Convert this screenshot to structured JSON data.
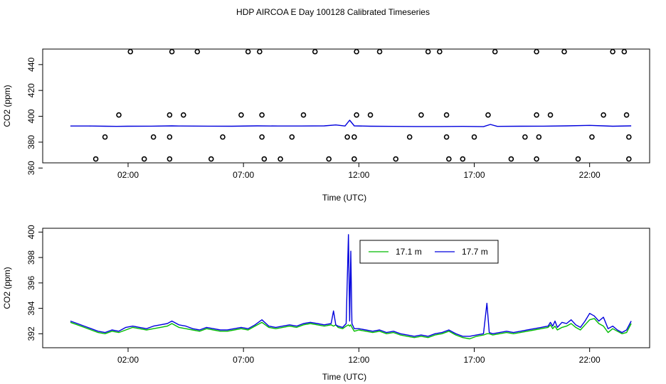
{
  "title": "HDP AIRCOA E  Day 100128  Calibrated Timeseries",
  "colors": {
    "series_a": "#00bb00",
    "series_b": "#0000dd",
    "points": "#000000"
  },
  "chart_data": [
    {
      "type": "scatter",
      "xlabel": "Time (UTC)",
      "ylabel": "CO2 (ppm)",
      "xlim": [
        -1.7,
        24.6
      ],
      "ylim": [
        364,
        452
      ],
      "x_tick_values": [
        2,
        7,
        12,
        17,
        22
      ],
      "x_tick_labels": [
        "02:00",
        "07:00",
        "12:00",
        "17:00",
        "22:00"
      ],
      "y_tick_values": [
        360,
        380,
        400,
        420,
        440
      ],
      "y_tick_labels": [
        "360",
        "380",
        "400",
        "420",
        "440"
      ],
      "grid": false,
      "points": [
        {
          "x": 2.1,
          "y": 450
        },
        {
          "x": 3.9,
          "y": 450
        },
        {
          "x": 5.0,
          "y": 450
        },
        {
          "x": 7.2,
          "y": 450
        },
        {
          "x": 7.7,
          "y": 450
        },
        {
          "x": 10.1,
          "y": 450
        },
        {
          "x": 11.9,
          "y": 450
        },
        {
          "x": 12.9,
          "y": 450
        },
        {
          "x": 15.0,
          "y": 450
        },
        {
          "x": 15.5,
          "y": 450
        },
        {
          "x": 17.9,
          "y": 450
        },
        {
          "x": 19.7,
          "y": 450
        },
        {
          "x": 20.9,
          "y": 450
        },
        {
          "x": 23.0,
          "y": 450
        },
        {
          "x": 23.5,
          "y": 450
        },
        {
          "x": 1.6,
          "y": 401
        },
        {
          "x": 3.8,
          "y": 401
        },
        {
          "x": 4.4,
          "y": 401
        },
        {
          "x": 6.9,
          "y": 401
        },
        {
          "x": 7.8,
          "y": 401
        },
        {
          "x": 9.6,
          "y": 401
        },
        {
          "x": 11.9,
          "y": 401
        },
        {
          "x": 12.5,
          "y": 401
        },
        {
          "x": 14.7,
          "y": 401
        },
        {
          "x": 15.8,
          "y": 401
        },
        {
          "x": 17.6,
          "y": 401
        },
        {
          "x": 19.7,
          "y": 401
        },
        {
          "x": 20.3,
          "y": 401
        },
        {
          "x": 22.6,
          "y": 401
        },
        {
          "x": 23.6,
          "y": 401
        },
        {
          "x": 1.0,
          "y": 384
        },
        {
          "x": 3.1,
          "y": 384
        },
        {
          "x": 3.8,
          "y": 384
        },
        {
          "x": 6.1,
          "y": 384
        },
        {
          "x": 7.8,
          "y": 384
        },
        {
          "x": 9.1,
          "y": 384
        },
        {
          "x": 11.5,
          "y": 384
        },
        {
          "x": 11.8,
          "y": 384
        },
        {
          "x": 14.2,
          "y": 384
        },
        {
          "x": 15.8,
          "y": 384
        },
        {
          "x": 17.0,
          "y": 384
        },
        {
          "x": 19.2,
          "y": 384
        },
        {
          "x": 19.8,
          "y": 384
        },
        {
          "x": 22.1,
          "y": 384
        },
        {
          "x": 23.7,
          "y": 384
        },
        {
          "x": 0.6,
          "y": 367
        },
        {
          "x": 2.7,
          "y": 367
        },
        {
          "x": 3.8,
          "y": 367
        },
        {
          "x": 5.6,
          "y": 367
        },
        {
          "x": 7.9,
          "y": 367
        },
        {
          "x": 8.6,
          "y": 367
        },
        {
          "x": 10.7,
          "y": 367
        },
        {
          "x": 11.8,
          "y": 367
        },
        {
          "x": 13.6,
          "y": 367
        },
        {
          "x": 15.9,
          "y": 367
        },
        {
          "x": 16.5,
          "y": 367
        },
        {
          "x": 18.6,
          "y": 367
        },
        {
          "x": 19.7,
          "y": 367
        },
        {
          "x": 21.5,
          "y": 367
        },
        {
          "x": 23.7,
          "y": 367
        }
      ],
      "series": [
        {
          "values_x": [
            -0.5,
            0.3,
            1.0,
            1.5,
            2.0,
            3.0,
            3.9,
            4.2,
            5.5,
            6.5,
            7.6,
            8.5,
            9.5,
            10.5,
            11.0,
            11.4,
            11.6,
            11.8,
            12.5,
            13.5,
            14.5,
            15.5,
            16.5,
            17.4,
            17.7,
            18.0,
            19.0,
            20.0,
            21.0,
            22.0,
            22.6,
            23.0,
            23.8
          ],
          "values": [
            392.5,
            392.5,
            392.3,
            392.2,
            392.3,
            392.4,
            392.6,
            392.5,
            392.4,
            392.3,
            392.6,
            392.5,
            392.5,
            392.6,
            393.3,
            392.5,
            397.0,
            392.6,
            392.3,
            392.2,
            392.1,
            392.1,
            392.2,
            392.0,
            393.7,
            392.2,
            392.3,
            392.4,
            392.6,
            393.0,
            392.6,
            392.3,
            392.6
          ]
        }
      ]
    },
    {
      "type": "line",
      "xlabel": "Time (UTC)",
      "ylabel": "CO2 (ppm)",
      "xlim": [
        -1.7,
        24.6
      ],
      "ylim": [
        390.9,
        400.3
      ],
      "x_tick_values": [
        2,
        7,
        12,
        17,
        22
      ],
      "x_tick_labels": [
        "02:00",
        "07:00",
        "12:00",
        "17:00",
        "22:00"
      ],
      "y_tick_values": [
        392,
        394,
        396,
        398,
        400
      ],
      "y_tick_labels": [
        "392",
        "394",
        "396",
        "398",
        "400"
      ],
      "grid": false,
      "legend_position": "top-center",
      "x": [
        -0.5,
        -0.2,
        0.1,
        0.4,
        0.7,
        1.0,
        1.3,
        1.6,
        1.9,
        2.2,
        2.5,
        2.8,
        3.1,
        3.4,
        3.7,
        3.9,
        4.2,
        4.5,
        4.8,
        5.1,
        5.4,
        5.7,
        6.0,
        6.3,
        6.6,
        6.9,
        7.2,
        7.5,
        7.8,
        8.1,
        8.4,
        8.7,
        9.0,
        9.3,
        9.6,
        9.9,
        10.2,
        10.5,
        10.8,
        10.9,
        11.0,
        11.1,
        11.3,
        11.45,
        11.55,
        11.6,
        11.65,
        11.7,
        11.8,
        12.0,
        12.3,
        12.6,
        12.9,
        13.2,
        13.5,
        13.8,
        14.1,
        14.4,
        14.7,
        15.0,
        15.3,
        15.6,
        15.9,
        16.2,
        16.5,
        16.8,
        17.1,
        17.4,
        17.55,
        17.65,
        17.8,
        18.1,
        18.4,
        18.7,
        19.0,
        19.3,
        19.6,
        19.9,
        20.2,
        20.3,
        20.4,
        20.5,
        20.6,
        20.8,
        21.0,
        21.2,
        21.4,
        21.6,
        21.8,
        22.0,
        22.2,
        22.4,
        22.6,
        22.8,
        23.0,
        23.2,
        23.4,
        23.6,
        23.8
      ],
      "series": [
        {
          "name": "17.1 m",
          "color": "#00bb00",
          "values": [
            392.9,
            392.7,
            392.5,
            392.3,
            392.1,
            392.0,
            392.2,
            392.1,
            392.3,
            392.5,
            392.4,
            392.3,
            392.4,
            392.5,
            392.6,
            392.8,
            392.5,
            392.4,
            392.3,
            392.2,
            392.4,
            392.3,
            392.2,
            392.2,
            392.3,
            392.4,
            392.3,
            392.6,
            392.9,
            392.5,
            392.4,
            392.5,
            392.6,
            392.5,
            392.7,
            392.8,
            392.7,
            392.6,
            392.7,
            392.6,
            392.7,
            392.5,
            392.4,
            392.6,
            392.7,
            392.6,
            392.7,
            392.5,
            392.2,
            392.3,
            392.2,
            392.1,
            392.2,
            392.0,
            392.1,
            391.9,
            391.8,
            391.7,
            391.8,
            391.7,
            391.9,
            392.0,
            392.2,
            391.9,
            391.7,
            391.6,
            391.8,
            391.9,
            392.0,
            392.0,
            391.9,
            392.0,
            392.1,
            392.0,
            392.1,
            392.2,
            392.3,
            392.4,
            392.5,
            392.7,
            392.4,
            392.6,
            392.3,
            392.5,
            392.6,
            392.8,
            392.5,
            392.3,
            392.7,
            393.1,
            393.2,
            392.8,
            392.6,
            392.1,
            392.4,
            392.2,
            392.0,
            392.1,
            392.8
          ]
        },
        {
          "name": "17.7 m",
          "color": "#0000dd",
          "values": [
            393.0,
            392.8,
            392.6,
            392.4,
            392.2,
            392.1,
            392.3,
            392.2,
            392.5,
            392.6,
            392.5,
            392.4,
            392.6,
            392.7,
            392.8,
            393.0,
            392.7,
            392.6,
            392.4,
            392.3,
            392.5,
            392.4,
            392.3,
            392.3,
            392.4,
            392.5,
            392.4,
            392.7,
            393.1,
            392.6,
            392.5,
            392.6,
            392.7,
            392.6,
            392.8,
            392.9,
            392.8,
            392.7,
            392.8,
            393.8,
            392.7,
            392.6,
            392.5,
            392.8,
            399.8,
            393.0,
            398.5,
            392.8,
            392.4,
            392.4,
            392.3,
            392.2,
            392.3,
            392.1,
            392.2,
            392.0,
            391.9,
            391.8,
            391.9,
            391.8,
            392.0,
            392.1,
            392.3,
            392.0,
            391.8,
            391.8,
            391.9,
            392.0,
            394.4,
            392.1,
            392.0,
            392.1,
            392.2,
            392.1,
            392.2,
            392.3,
            392.4,
            392.5,
            392.6,
            392.9,
            392.6,
            393.0,
            392.5,
            392.9,
            392.8,
            393.1,
            392.7,
            392.5,
            393.0,
            393.6,
            393.4,
            393.0,
            393.3,
            392.4,
            392.6,
            392.3,
            392.1,
            392.3,
            393.0
          ]
        }
      ]
    }
  ]
}
